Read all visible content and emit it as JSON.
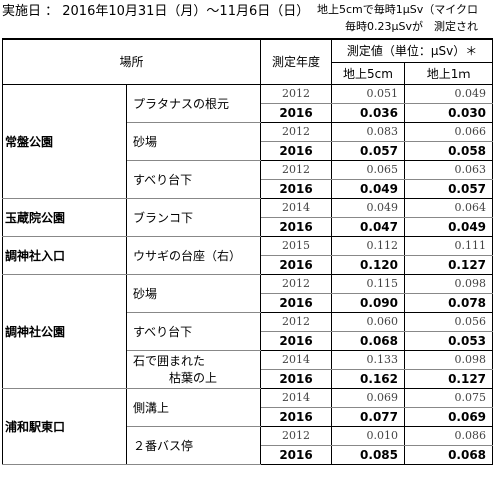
{
  "header": {
    "date_line": "実施日 ： 2016年10月31日（月）～11月6日（日）",
    "note_line1": "地上5cmで毎時1μSv（マイクロ",
    "note_line2": "毎時0.23μSvが　測定され"
  },
  "table": {
    "col_place": "場所",
    "col_year": "測定年度",
    "col_measured": "測定値（単位：μSv）＊",
    "col_5cm": "地上5cm",
    "col_1m": "地上1ｍ",
    "groups": [
      {
        "park": "常盤公園",
        "locations": [
          {
            "name": "プラタナスの根元",
            "old": {
              "year": "2012",
              "cm5": "0.051",
              "m1": "0.049"
            },
            "new": {
              "year": "2016",
              "cm5": "0.036",
              "m1": "0.030"
            }
          },
          {
            "name": "砂場",
            "old": {
              "year": "2012",
              "cm5": "0.083",
              "m1": "0.066"
            },
            "new": {
              "year": "2016",
              "cm5": "0.057",
              "m1": "0.058"
            }
          },
          {
            "name": "すべり台下",
            "old": {
              "year": "2012",
              "cm5": "0.065",
              "m1": "0.063"
            },
            "new": {
              "year": "2016",
              "cm5": "0.049",
              "m1": "0.057"
            }
          }
        ]
      },
      {
        "park": "玉蔵院公園",
        "locations": [
          {
            "name": "ブランコ下",
            "old": {
              "year": "2014",
              "cm5": "0.049",
              "m1": "0.064"
            },
            "new": {
              "year": "2016",
              "cm5": "0.047",
              "m1": "0.049"
            }
          }
        ]
      },
      {
        "park": "調神社入口",
        "locations": [
          {
            "name": "ウサギの台座（右）",
            "old": {
              "year": "2015",
              "cm5": "0.112",
              "m1": "0.111"
            },
            "new": {
              "year": "2016",
              "cm5": "0.120",
              "m1": "0.127"
            }
          }
        ]
      },
      {
        "park": "調神社公園",
        "locations": [
          {
            "name": "砂場",
            "old": {
              "year": "2012",
              "cm5": "0.115",
              "m1": "0.098"
            },
            "new": {
              "year": "2016",
              "cm5": "0.090",
              "m1": "0.078"
            }
          },
          {
            "name": "すべり台下",
            "old": {
              "year": "2012",
              "cm5": "0.060",
              "m1": "0.056"
            },
            "new": {
              "year": "2016",
              "cm5": "0.068",
              "m1": "0.053"
            }
          },
          {
            "name_line1": "石で囲まれた",
            "name_line2": "枯葉の上",
            "old": {
              "year": "2014",
              "cm5": "0.133",
              "m1": "0.098"
            },
            "new": {
              "year": "2016",
              "cm5": "0.162",
              "m1": "0.127"
            }
          }
        ]
      },
      {
        "park": "浦和駅東口",
        "locations": [
          {
            "name": "側溝上",
            "old": {
              "year": "2014",
              "cm5": "0.069",
              "m1": "0.075"
            },
            "new": {
              "year": "2016",
              "cm5": "0.077",
              "m1": "0.069"
            }
          },
          {
            "name": "２番バス停",
            "old": {
              "year": "2012",
              "cm5": "0.010",
              "m1": "0.086"
            },
            "new": {
              "year": "2016",
              "cm5": "0.085",
              "m1": "0.068"
            }
          }
        ]
      }
    ]
  }
}
